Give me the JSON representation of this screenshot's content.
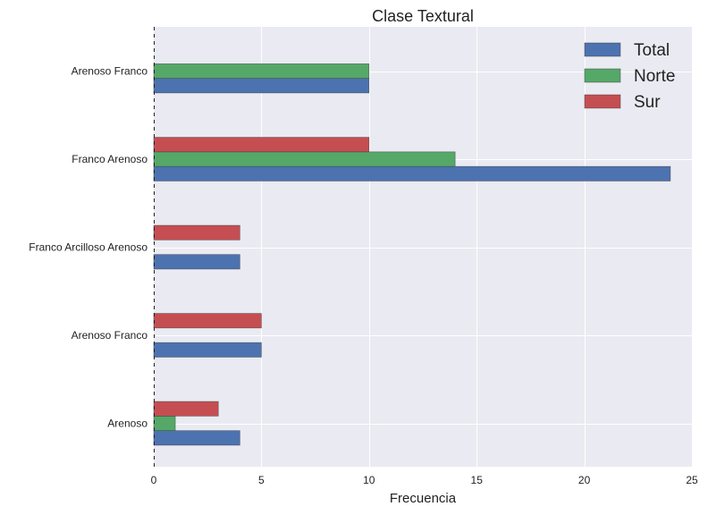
{
  "chart_data": {
    "type": "bar",
    "orientation": "horizontal",
    "title": "Clase Textural",
    "xlabel": "Frecuencia",
    "ylabel": "",
    "xlim": [
      0,
      25
    ],
    "xticks": [
      0,
      5,
      10,
      15,
      20,
      25
    ],
    "grid": true,
    "legend_position": "top-right",
    "categories": [
      "Arenoso",
      "Arenoso Franco",
      "Franco Arcilloso Arenoso",
      "Franco Arenoso",
      "Arenoso Franco"
    ],
    "series": [
      {
        "name": "Total",
        "color": "#4c72b0",
        "values": [
          4,
          5,
          4,
          24,
          10
        ]
      },
      {
        "name": "Norte",
        "color": "#55a868",
        "values": [
          1,
          0,
          0,
          14,
          10
        ]
      },
      {
        "name": "Sur",
        "color": "#c44e52",
        "values": [
          3,
          5,
          4,
          10,
          0
        ]
      }
    ]
  }
}
